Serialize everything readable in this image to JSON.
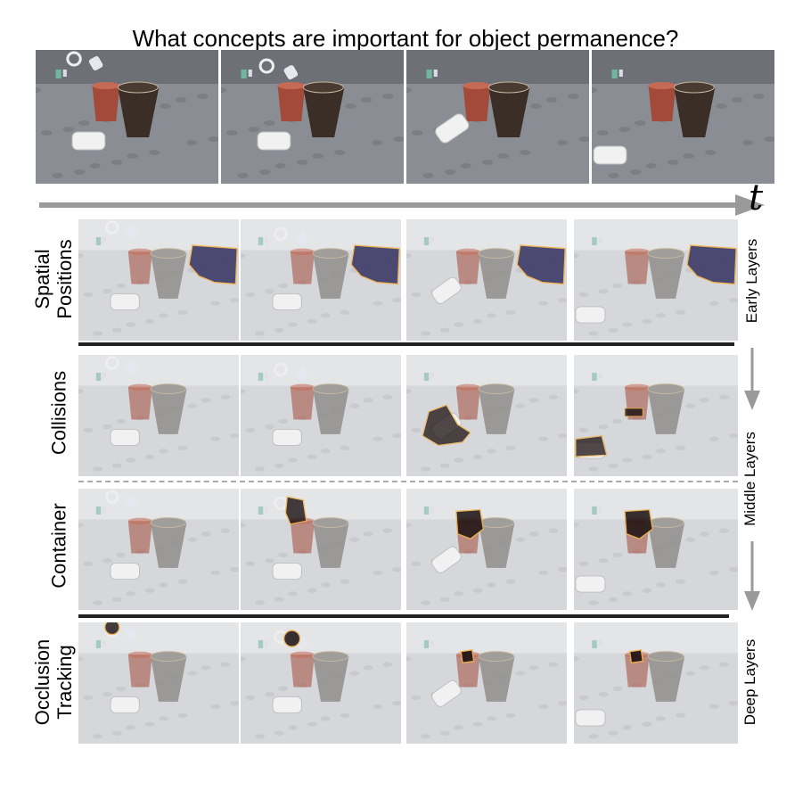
{
  "title": "What concepts are important for object permanence?",
  "time_axis_label": "t",
  "rows": [
    {
      "id": "spatial",
      "label": "Spatial\nPositions"
    },
    {
      "id": "collisions",
      "label": "Collisions"
    },
    {
      "id": "container",
      "label": "Container"
    },
    {
      "id": "occlusion",
      "label": "Occlusion\nTracking"
    }
  ],
  "layer_labels": {
    "early": "Early Layers",
    "middle": "Middle Layers",
    "deep": "Deep Layers"
  },
  "colors": {
    "ground": "#8a8d93",
    "ground_faded": "#d6d7da",
    "highlight_purple": "#3d3a66",
    "highlight_dark": "#1a0f10",
    "highlight_outline": "#f2b24a",
    "arrow": "#9a9a9a",
    "separator": "#222222",
    "dashed": "#aaaaaa"
  }
}
